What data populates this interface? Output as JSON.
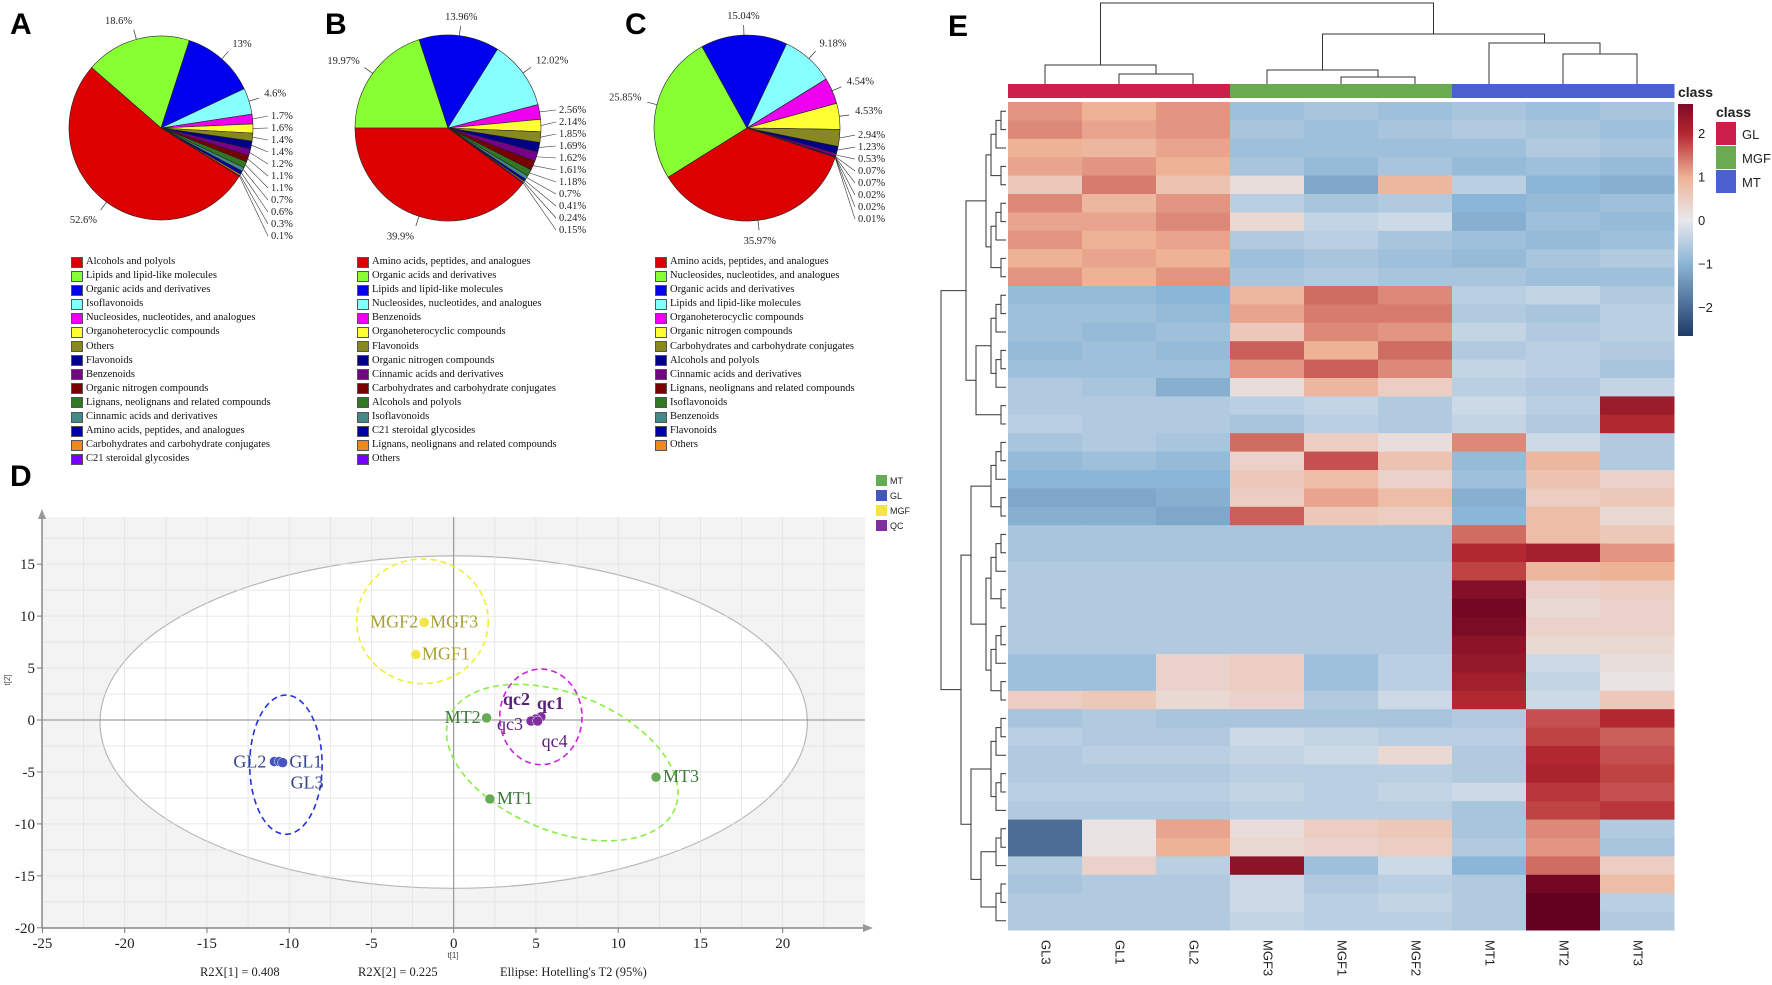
{
  "panel_labels": {
    "a": "A",
    "b": "B",
    "c": "C",
    "d": "D",
    "e": "E"
  },
  "palette": [
    "#dd0000",
    "#88ff33",
    "#0000ee",
    "#88ffff",
    "#ee00ee",
    "#ffff33",
    "#888822",
    "#000088",
    "#770088",
    "#770000",
    "#337722",
    "#448888",
    "#0000aa",
    "#ee8822",
    "#7700ff"
  ],
  "chart_data": [
    {
      "id": "A",
      "type": "pie",
      "labels": [
        "Alcohols and polyols",
        "Lipids and lipid-like molecules",
        "Organic acids and derivatives",
        "Isoflavonoids",
        "Nucleosides, nucleotides, and analogues",
        "Organoheterocyclic compounds",
        "Others",
        "Flavonoids",
        "Benzenoids",
        "Organic nitrogen compounds",
        "Lignans, neolignans and related compounds",
        "Cinnamic acids and derivatives",
        "Amino acids, peptides, and analogues",
        "Carbohydrates and carbohydrate conjugates",
        "C21 steroidal glycosides"
      ],
      "values": [
        52.6,
        18.6,
        13,
        4.6,
        1.7,
        1.6,
        1.4,
        1.4,
        1.2,
        1.1,
        1.1,
        0.7,
        0.6,
        0.3,
        0.1
      ],
      "value_labels": [
        "52.6%",
        "18.6%",
        "13%",
        "4.6%",
        "1.7%",
        "1.6%",
        "1.4%",
        "1.4%",
        "1.2%",
        "1.1%",
        "1.1%",
        "0.7%",
        "0.6%",
        "0.3%",
        "0.1%"
      ]
    },
    {
      "id": "B",
      "type": "pie",
      "labels": [
        "Amino acids, peptides, and analogues",
        "Organic acids and derivatives",
        "Lipids and lipid-like molecules",
        "Nucleosides, nucleotides, and analogues",
        "Benzenoids",
        "Organoheterocyclic compounds",
        "Flavonoids",
        "Organic nitrogen compounds",
        "Cinnamic acids and derivatives",
        "Carbohydrates and carbohydrate conjugates",
        "Alcohols and polyols",
        "Isoflavonoids",
        "C21 steroidal glycosides",
        "Lignans, neolignans and related compounds",
        "Others"
      ],
      "values": [
        39.9,
        19.97,
        13.96,
        12.02,
        2.56,
        2.14,
        1.85,
        1.69,
        1.62,
        1.61,
        1.18,
        0.7,
        0.41,
        0.24,
        0.15
      ],
      "value_labels": [
        "39.9%",
        "19.97%",
        "13.96%",
        "12.02%",
        "2.56%",
        "2.14%",
        "1.85%",
        "1.69%",
        "1.62%",
        "1.61%",
        "1.18%",
        "0.7%",
        "0.41%",
        "0.24%",
        "0.15%"
      ]
    },
    {
      "id": "C",
      "type": "pie",
      "labels": [
        "Amino acids, peptides, and analogues",
        "Nucleosides, nucleotides, and analogues",
        "Organic acids and derivatives",
        "Lipids and lipid-like molecules",
        "Organoheterocyclic compounds",
        "Organic nitrogen compounds",
        "Carbohydrates and carbohydrate conjugates",
        "Alcohols and polyols",
        "Cinnamic acids and derivatives",
        "Lignans, neolignans and related compounds",
        "Isoflavonoids",
        "Benzenoids",
        "Flavonoids",
        "Others"
      ],
      "values": [
        35.97,
        25.85,
        15.04,
        9.18,
        4.54,
        4.53,
        2.94,
        1.23,
        0.53,
        0.07,
        0.07,
        0.02,
        0.02,
        0.01
      ],
      "value_labels": [
        "35.97%",
        "25.85%",
        "15.04%",
        "9.18%",
        "4.54%",
        "4.53%",
        "2.94%",
        "1.23%",
        "0.53%",
        "0.07%",
        "0.07%",
        "0.02%",
        "0.02%",
        "0.01%"
      ]
    },
    {
      "id": "D",
      "type": "scatter",
      "xlabel": "t[1]",
      "ylabel": "t[2]",
      "xlim": [
        -25,
        24.5
      ],
      "ylim": [
        -20,
        19
      ],
      "xticks": [
        -25,
        -20,
        -15,
        -10,
        -5,
        0,
        5,
        10,
        15,
        20
      ],
      "yticks": [
        -20,
        -15,
        -10,
        -5,
        0,
        5,
        10,
        15
      ],
      "footer": [
        "R2X[1] = 0.408",
        "R2X[2] = 0.225",
        "Ellipse: Hotelling's T2 (95%)"
      ],
      "legend": [
        {
          "name": "MT",
          "color": "#66aa55"
        },
        {
          "name": "GL",
          "color": "#4455bb"
        },
        {
          "name": "MGF",
          "color": "#f2e644"
        },
        {
          "name": "QC",
          "color": "#7f2fa0"
        }
      ],
      "points": [
        {
          "label": "GL2",
          "group": "GL",
          "x": -10.9,
          "y": -4.0
        },
        {
          "label": "GL1",
          "group": "GL",
          "x": -10.6,
          "y": -4.0
        },
        {
          "label": "GL3",
          "group": "GL",
          "x": -10.4,
          "y": -4.1
        },
        {
          "label": "MGF2",
          "group": "MGF",
          "x": -1.8,
          "y": 9.4
        },
        {
          "label": "MGF3",
          "group": "MGF",
          "x": -1.8,
          "y": 9.4
        },
        {
          "label": "MGF1",
          "group": "MGF",
          "x": -2.3,
          "y": 6.3
        },
        {
          "label": "MT2",
          "group": "MT",
          "x": 2.0,
          "y": 0.2
        },
        {
          "label": "MT1",
          "group": "MT",
          "x": 2.2,
          "y": -7.6
        },
        {
          "label": "MT3",
          "group": "MT",
          "x": 12.3,
          "y": -5.5
        },
        {
          "label": "qc1",
          "group": "QC",
          "x": 5.3,
          "y": 0.3
        },
        {
          "label": "qc2",
          "group": "QC",
          "x": 5.0,
          "y": 0.1
        },
        {
          "label": "qc3",
          "group": "QC",
          "x": 4.7,
          "y": -0.1
        },
        {
          "label": "qc4",
          "group": "QC",
          "x": 5.1,
          "y": -0.1
        }
      ],
      "hotelling_ellipse": {
        "cx": 0,
        "cy": -0.2,
        "rx": 21.5,
        "ry": 16
      },
      "group_ellipses": [
        {
          "group": "GL",
          "color": "#2233dd",
          "cx": -10.2,
          "cy": -4.3,
          "rx": 2.2,
          "ry": 6.7,
          "angle": 0
        },
        {
          "group": "MGF",
          "color": "#eeee33",
          "cx": -1.9,
          "cy": 9.5,
          "rx": 4.0,
          "ry": 6.0,
          "angle": 0
        },
        {
          "group": "QC",
          "color": "#cc22dd",
          "cx": 5.3,
          "cy": 0.3,
          "rx": 2.5,
          "ry": 4.6,
          "angle": 0
        },
        {
          "group": "MT",
          "color": "#88ee44",
          "cx": 6.6,
          "cy": -4.1,
          "rx": 7.4,
          "ry": 6.6,
          "angle": 22
        }
      ]
    },
    {
      "id": "E",
      "type": "heatmap",
      "columns": [
        "GL3",
        "GL1",
        "GL2",
        "MGF3",
        "MGF1",
        "MGF2",
        "MT1",
        "MT2",
        "MT3"
      ],
      "column_class": [
        "GL",
        "GL",
        "GL",
        "MGF",
        "MGF",
        "MGF",
        "MT",
        "MT",
        "MT"
      ],
      "class_title": "class",
      "classes": [
        {
          "name": "GL",
          "color": "#cc1f4a"
        },
        {
          "name": "MGF",
          "color": "#6aaa50"
        },
        {
          "name": "MT",
          "color": "#4a5fd0"
        }
      ],
      "colorbar_ticks": [
        2,
        1,
        0,
        -1,
        -2
      ],
      "colorbar_labels": [
        "2",
        "1",
        "0",
        "−1",
        "−2"
      ],
      "range": [
        -2.7,
        3.0
      ],
      "matrix": [
        [
          1.2,
          1.0,
          1.2,
          -0.8,
          -0.7,
          -0.8,
          -0.7,
          -0.8,
          -0.7
        ],
        [
          1.3,
          1.1,
          1.2,
          -0.7,
          -0.8,
          -0.7,
          -0.6,
          -0.7,
          -0.8
        ],
        [
          1.0,
          0.9,
          1.1,
          -0.8,
          -0.8,
          -0.8,
          -0.8,
          -0.6,
          -0.7
        ],
        [
          1.1,
          1.2,
          1.0,
          -0.7,
          -0.9,
          -0.7,
          -0.9,
          -0.8,
          -0.9
        ],
        [
          0.6,
          1.4,
          0.7,
          0.2,
          -1.2,
          0.9,
          -0.5,
          -1.0,
          -1.1
        ],
        [
          1.3,
          0.9,
          1.2,
          -0.5,
          -0.7,
          -0.6,
          -1.0,
          -0.9,
          -0.8
        ],
        [
          1.1,
          1.1,
          1.3,
          0.3,
          -0.4,
          -0.3,
          -1.1,
          -0.8,
          -0.9
        ],
        [
          1.2,
          1.0,
          1.1,
          -0.6,
          -0.5,
          -0.7,
          -0.8,
          -0.9,
          -0.8
        ],
        [
          1.0,
          1.1,
          1.0,
          -0.8,
          -0.7,
          -0.8,
          -0.9,
          -0.7,
          -0.6
        ],
        [
          1.2,
          1.0,
          1.2,
          -0.7,
          -0.6,
          -0.7,
          -0.7,
          -0.8,
          -0.8
        ],
        [
          -0.9,
          -0.9,
          -1.0,
          0.9,
          1.5,
          1.3,
          -0.5,
          -0.4,
          -0.6
        ],
        [
          -0.8,
          -0.8,
          -0.9,
          1.1,
          1.4,
          1.4,
          -0.6,
          -0.7,
          -0.5
        ],
        [
          -0.8,
          -0.9,
          -0.8,
          0.6,
          1.3,
          1.2,
          -0.4,
          -0.6,
          -0.5
        ],
        [
          -0.9,
          -0.8,
          -0.9,
          1.6,
          1.0,
          1.5,
          -0.6,
          -0.5,
          -0.6
        ],
        [
          -0.8,
          -0.8,
          -0.8,
          1.2,
          1.6,
          1.3,
          -0.4,
          -0.5,
          -0.7
        ],
        [
          -0.6,
          -0.7,
          -1.1,
          0.2,
          0.9,
          0.5,
          -0.5,
          -0.6,
          -0.4
        ],
        [
          -0.6,
          -0.6,
          -0.6,
          -0.5,
          -0.4,
          -0.6,
          -0.3,
          -0.5,
          2.3
        ],
        [
          -0.5,
          -0.6,
          -0.6,
          -0.7,
          -0.5,
          -0.6,
          -0.4,
          -0.6,
          2.0
        ],
        [
          -0.7,
          -0.6,
          -0.7,
          1.5,
          0.5,
          0.2,
          1.3,
          -0.3,
          -0.6
        ],
        [
          -0.9,
          -0.8,
          -0.9,
          0.4,
          1.7,
          0.7,
          -0.9,
          0.9,
          -0.6
        ],
        [
          -1.0,
          -1.0,
          -1.0,
          0.6,
          0.8,
          0.4,
          -0.8,
          0.7,
          0.4
        ],
        [
          -1.2,
          -1.2,
          -1.1,
          0.5,
          1.1,
          0.8,
          -1.1,
          0.5,
          0.6
        ],
        [
          -1.1,
          -1.1,
          -1.2,
          1.6,
          0.6,
          0.5,
          -1.0,
          0.8,
          0.3
        ],
        [
          -0.7,
          -0.7,
          -0.7,
          -0.7,
          -0.7,
          -0.7,
          1.5,
          0.8,
          0.6
        ],
        [
          -0.7,
          -0.7,
          -0.7,
          -0.7,
          -0.7,
          -0.7,
          2.0,
          2.2,
          1.2
        ],
        [
          -0.6,
          -0.6,
          -0.6,
          -0.6,
          -0.6,
          -0.6,
          1.8,
          0.9,
          1.0
        ],
        [
          -0.6,
          -0.6,
          -0.6,
          -0.6,
          -0.6,
          -0.6,
          2.6,
          0.4,
          0.5
        ],
        [
          -0.6,
          -0.6,
          -0.6,
          -0.6,
          -0.6,
          -0.6,
          2.8,
          0.3,
          0.4
        ],
        [
          -0.6,
          -0.6,
          -0.6,
          -0.6,
          -0.6,
          -0.6,
          2.7,
          0.4,
          0.4
        ],
        [
          -0.6,
          -0.6,
          -0.6,
          -0.6,
          -0.6,
          -0.6,
          2.5,
          0.3,
          0.3
        ],
        [
          -0.8,
          -0.8,
          0.4,
          0.5,
          -0.8,
          -0.5,
          2.4,
          -0.3,
          0.2
        ],
        [
          -0.8,
          -0.8,
          0.4,
          0.5,
          -0.8,
          -0.5,
          2.2,
          -0.4,
          0.1
        ],
        [
          0.5,
          0.6,
          0.3,
          0.4,
          -0.6,
          -0.3,
          2.0,
          -0.3,
          0.6
        ],
        [
          -0.7,
          -0.6,
          -0.7,
          -0.7,
          -0.7,
          -0.7,
          -0.6,
          1.7,
          2.0
        ],
        [
          -0.5,
          -0.6,
          -0.6,
          -0.3,
          -0.4,
          -0.5,
          -0.5,
          1.8,
          1.6
        ],
        [
          -0.6,
          -0.5,
          -0.5,
          -0.4,
          -0.3,
          0.3,
          -0.6,
          2.0,
          1.7
        ],
        [
          -0.6,
          -0.6,
          -0.6,
          -0.5,
          -0.5,
          -0.5,
          -0.6,
          2.1,
          1.8
        ],
        [
          -0.5,
          -0.5,
          -0.5,
          -0.4,
          -0.5,
          -0.4,
          -0.3,
          1.9,
          1.7
        ],
        [
          -0.6,
          -0.6,
          -0.6,
          -0.5,
          -0.5,
          -0.5,
          -0.7,
          1.8,
          1.9
        ],
        [
          -2.0,
          0.1,
          1.1,
          0.2,
          0.5,
          0.6,
          -0.7,
          1.3,
          -0.6
        ],
        [
          -2.0,
          0.1,
          1.0,
          0.3,
          0.4,
          0.5,
          -0.6,
          1.2,
          -0.7
        ],
        [
          -0.6,
          0.4,
          -0.5,
          2.5,
          -0.8,
          -0.3,
          -1.0,
          1.5,
          0.5
        ],
        [
          -0.7,
          -0.6,
          -0.6,
          -0.3,
          -0.6,
          -0.5,
          -0.6,
          2.8,
          0.8
        ],
        [
          -0.6,
          -0.6,
          -0.6,
          -0.3,
          -0.5,
          -0.4,
          -0.6,
          3.0,
          -0.5
        ],
        [
          -0.6,
          -0.6,
          -0.6,
          -0.4,
          -0.5,
          -0.5,
          -0.6,
          3.0,
          -0.6
        ]
      ]
    }
  ]
}
